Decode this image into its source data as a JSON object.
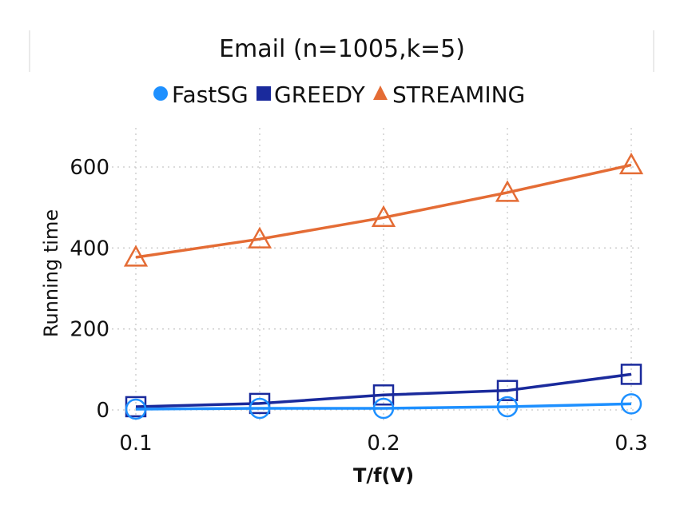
{
  "chart_data": {
    "type": "line",
    "title": "Email (n=1005,k=5)",
    "xlabel": "T/f(V)",
    "ylabel": "Running time",
    "x": [
      0.1,
      0.15,
      0.2,
      0.25,
      0.3
    ],
    "xticks": [
      0.1,
      0.2,
      0.3
    ],
    "xtick_labels": [
      "0.1",
      "0.2",
      "0.3"
    ],
    "yticks": [
      0,
      200,
      400,
      600
    ],
    "ytick_labels": [
      "0",
      "200",
      "400",
      "600"
    ],
    "xlim": [
      0.1,
      0.3
    ],
    "ylim": [
      0,
      600
    ],
    "grid": true,
    "legend_position": "top",
    "series": [
      {
        "name": "FastSG",
        "marker": "circle",
        "color": "#1e90ff",
        "values": [
          2,
          4,
          4,
          8,
          15
        ]
      },
      {
        "name": "GREEDY",
        "marker": "square",
        "color": "#1a2a9c",
        "values": [
          8,
          16,
          37,
          48,
          88
        ]
      },
      {
        "name": "STREAMING",
        "marker": "triangle",
        "color": "#e46c35",
        "values": [
          377,
          422,
          475,
          537,
          605
        ]
      }
    ]
  }
}
